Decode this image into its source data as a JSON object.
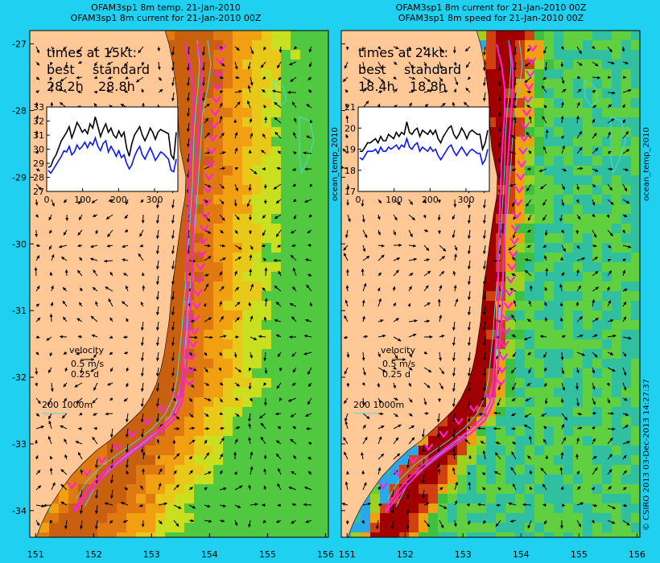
{
  "panels": [
    {
      "title_line1": "OFAM3sp1 8m temp. 21-Jan-2010",
      "title_line2": "OFAM3sp1 8m current for 21-Jan-2010 00Z",
      "times_label": "times at 15kt:",
      "best_label": "best",
      "standard_label": "standard",
      "best_value": "28.2h",
      "standard_value": "28.8h",
      "velocity_label": "velocity",
      "velocity_ms": "0.5 m/s",
      "velocity_d": "0.25 d",
      "depth_label": "200  1000m",
      "side_label": "ocean_temp_2010"
    },
    {
      "title_line1": "OFAM3sp1 8m current for 21-Jan-2010 00Z",
      "title_line2": "OFAM3sp1 8m speed for 21-Jan-2010 00Z",
      "times_label": "times at 24kt:",
      "best_label": "best",
      "standard_label": "standard",
      "best_value": "18.4h",
      "standard_value": "18.8h",
      "velocity_label": "velocity",
      "velocity_ms": "0.5 m/s",
      "velocity_d": "0.25 d",
      "depth_label": "200  1000m",
      "side_label": "ocean_temp_2010"
    }
  ],
  "copyright": "© CSIRO 2013   03-Dec-2013 14:27:37",
  "colors": {
    "background": "#1fd0f0",
    "land": "#ffc896",
    "best_line": "#000000",
    "standard_line": "#0a14ff",
    "route": "#ff1ee6",
    "isobath": "#4dd8e0"
  },
  "chart_data": [
    {
      "type": "heatmap",
      "title": "OFAM3sp1 8m temp. 21-Jan-2010",
      "x_ticks": [
        "151",
        "152",
        "153",
        "154",
        "155",
        "156"
      ],
      "y_ticks": [
        "-27",
        "-28",
        "-29",
        "-30",
        "-31",
        "-32",
        "-33",
        "-34"
      ],
      "xlim": [
        151,
        156
      ],
      "ylim": [
        -34.4,
        -26.8
      ],
      "inset": {
        "type": "line",
        "x_ticks": [
          "0",
          "100",
          "200",
          "300"
        ],
        "y_ticks": [
          "27",
          "28",
          "29",
          "30",
          "31",
          "32",
          "33"
        ],
        "xlim": [
          0,
          365
        ],
        "ylim": [
          27,
          33
        ],
        "series": [
          {
            "name": "best",
            "values": [
              28.7,
              28.8,
              29.3,
              29.6,
              30.1,
              30.6,
              30.9,
              31.2,
              31.6,
              30.8,
              31.3,
              31.9,
              31.6,
              31.2,
              31.4,
              31.1,
              31.8,
              31.5,
              32.3,
              31.6,
              30.9,
              31.4,
              31.8,
              31.2,
              31.5,
              31.0,
              30.8,
              31.3,
              30.9,
              31.2,
              30.1,
              29.5,
              30.4,
              31.0,
              31.3,
              31.6,
              31.0,
              30.6,
              31.0,
              31.5,
              31.2,
              30.7,
              31.2,
              31.4,
              31.3,
              31.2,
              31.1,
              29.6,
              29.3,
              31.2
            ]
          },
          {
            "name": "standard",
            "values": [
              28.5,
              28.3,
              28.6,
              28.9,
              29.2,
              29.5,
              29.9,
              29.8,
              30.2,
              29.6,
              29.8,
              30.3,
              30.0,
              30.2,
              30.5,
              30.1,
              30.5,
              30.3,
              30.8,
              30.2,
              29.9,
              30.4,
              30.6,
              29.8,
              30.2,
              29.9,
              29.5,
              29.9,
              29.4,
              29.6,
              29.0,
              28.6,
              28.9,
              29.5,
              29.9,
              30.2,
              29.6,
              29.3,
              29.7,
              30.1,
              29.7,
              29.2,
              29.5,
              29.8,
              29.7,
              29.5,
              29.3,
              28.5,
              28.4,
              29.3
            ]
          }
        ]
      }
    },
    {
      "type": "heatmap",
      "title": "OFAM3sp1 8m speed for 21-Jan-2010 00Z",
      "x_ticks": [
        "151",
        "152",
        "153",
        "154",
        "155",
        "156"
      ],
      "y_ticks": [
        "",
        "",
        "",
        "",
        "",
        "",
        "",
        ""
      ],
      "xlim": [
        151,
        156
      ],
      "ylim": [
        -34.4,
        -26.8
      ],
      "inset": {
        "type": "line",
        "x_ticks": [
          "0",
          "100",
          "200",
          "300"
        ],
        "y_ticks": [
          "17",
          "18",
          "19",
          "20",
          "21"
        ],
        "xlim": [
          0,
          365
        ],
        "ylim": [
          17,
          21
        ],
        "series": [
          {
            "name": "best",
            "values": [
              18.9,
              18.9,
              19.1,
              19.3,
              19.3,
              19.4,
              19.5,
              19.3,
              19.6,
              19.4,
              19.4,
              19.7,
              19.6,
              19.5,
              19.8,
              19.6,
              19.8,
              19.7,
              20.3,
              19.8,
              19.7,
              19.9,
              20.0,
              19.6,
              19.9,
              19.8,
              19.7,
              19.9,
              19.7,
              19.9,
              19.5,
              19.3,
              19.6,
              19.8,
              20.0,
              20.1,
              19.7,
              19.5,
              19.7,
              20.0,
              19.8,
              19.5,
              19.8,
              19.9,
              19.8,
              19.7,
              19.7,
              19.0,
              19.3,
              19.9
            ]
          },
          {
            "name": "standard",
            "values": [
              18.6,
              18.5,
              18.7,
              18.9,
              18.9,
              18.9,
              19.0,
              18.8,
              19.1,
              18.9,
              18.9,
              19.1,
              19.0,
              19.1,
              19.2,
              19.0,
              19.2,
              19.1,
              19.5,
              19.1,
              19.0,
              19.2,
              19.3,
              18.9,
              19.1,
              19.0,
              18.9,
              19.1,
              18.9,
              19.0,
              18.7,
              18.5,
              18.7,
              18.9,
              19.1,
              19.2,
              18.9,
              18.7,
              18.9,
              19.1,
              18.9,
              18.7,
              18.9,
              19.0,
              18.9,
              18.8,
              18.8,
              18.3,
              18.5,
              19.0
            ]
          }
        ]
      }
    }
  ]
}
